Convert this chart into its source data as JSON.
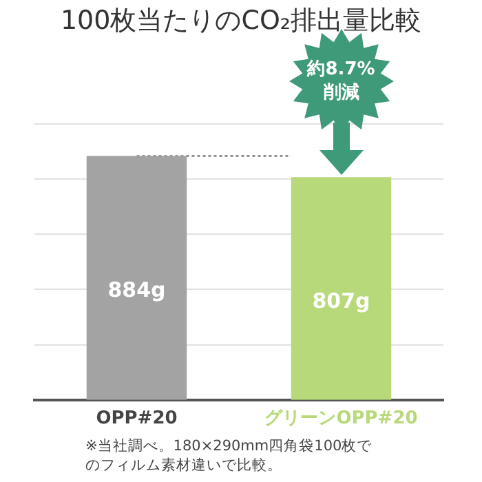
{
  "chart_data": {
    "type": "bar",
    "title": "100枚当たりのCO₂排出量比較",
    "categories": [
      "OPP#20",
      "グリーンOPP#20"
    ],
    "values": [
      884,
      807
    ],
    "colors": [
      "#a3a3a3",
      "#b8d97a"
    ],
    "value_labels": [
      "884g",
      "807g"
    ],
    "ylim": [
      0,
      1000
    ],
    "yticks": [
      {
        "value": 200,
        "label": null
      },
      {
        "value": 400,
        "label": null
      },
      {
        "value": 600,
        "label": null
      },
      {
        "value": 800,
        "label": null
      },
      {
        "value": 1000,
        "label": null
      }
    ],
    "grid": "y",
    "legend": false,
    "tick_labels": "x",
    "ref_lines": [
      {
        "axis": "y",
        "value": 884,
        "color": "#555555",
        "line_style": "dotted"
      }
    ],
    "annotations": [
      "約8.7%\n削減",
      "※当社調べ。180×290mm四角袋100枚でのフィルム素材違いで比較。"
    ]
  }
}
